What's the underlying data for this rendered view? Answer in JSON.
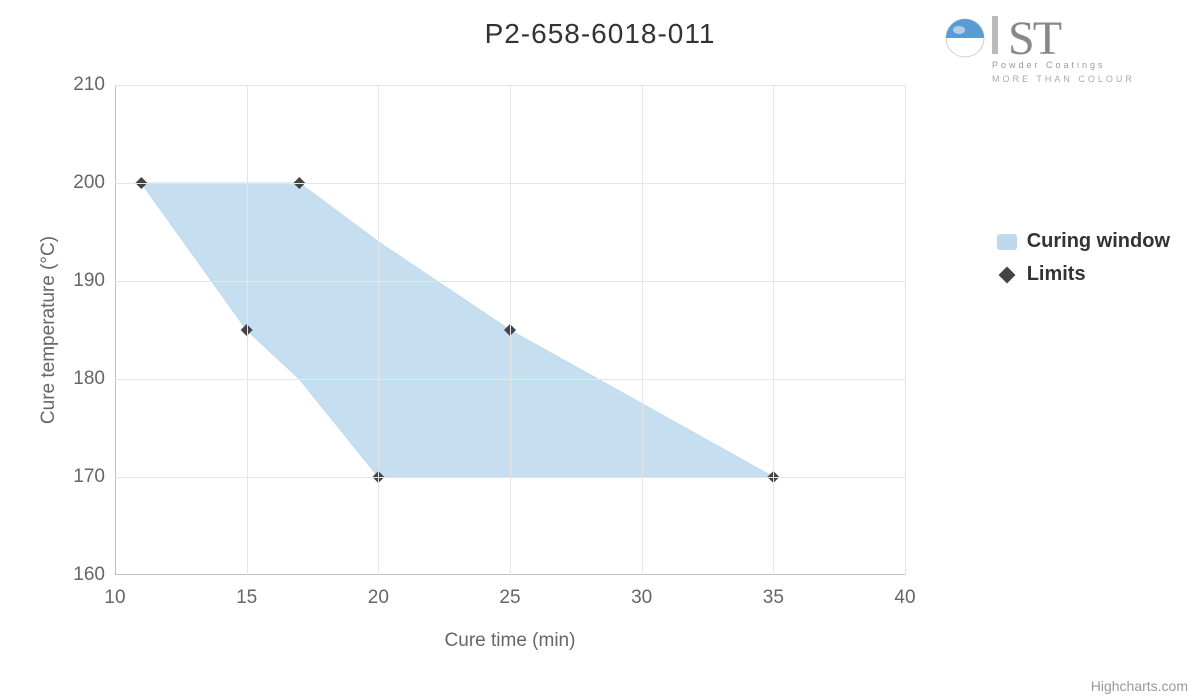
{
  "title": "P2-658-6018-011",
  "logo": {
    "text_main": "ST",
    "text_sub1": "Powder Coatings",
    "text_sub2": "MORE THAN COLOUR",
    "sphere_top_color": "#5a9bd4",
    "sphere_bottom_color": "#ffffff",
    "text_color": "#888888"
  },
  "chart": {
    "type": "area-range-scatter",
    "background_color": "#ffffff",
    "grid_color": "#e6e6e6",
    "axis_line_color": "#c0c0c0",
    "tick_label_color": "#666666",
    "axis_title_color": "#666666",
    "title_fontsize": 28,
    "tick_fontsize": 19,
    "axis_title_fontsize": 19,
    "x": {
      "title": "Cure time (min)",
      "min": 10,
      "max": 40,
      "ticks": [
        10,
        15,
        20,
        25,
        30,
        35,
        40
      ]
    },
    "y": {
      "title": "Cure temperature (°C)",
      "min": 160,
      "max": 210,
      "ticks": [
        160,
        170,
        180,
        190,
        200,
        210
      ]
    },
    "series": {
      "curing_window": {
        "name": "Curing window",
        "type": "arearange",
        "fill_color": "#bcd9ed",
        "fill_opacity": 0.85,
        "line_color": "#bcd9ed",
        "line_width": 1,
        "data": [
          {
            "x": 11,
            "low": 200,
            "high": 200
          },
          {
            "x": 15,
            "low": 185,
            "high": 200
          },
          {
            "x": 17,
            "low": 180,
            "high": 200
          },
          {
            "x": 20,
            "low": 170,
            "high": 194
          },
          {
            "x": 25,
            "low": 170,
            "high": 185
          },
          {
            "x": 35,
            "low": 170,
            "high": 170
          }
        ]
      },
      "limits": {
        "name": "Limits",
        "type": "scatter",
        "marker_shape": "diamond",
        "marker_size": 12,
        "marker_color": "#444444",
        "data": [
          {
            "x": 11,
            "y": 200
          },
          {
            "x": 17,
            "y": 200
          },
          {
            "x": 15,
            "y": 185
          },
          {
            "x": 25,
            "y": 185
          },
          {
            "x": 20,
            "y": 170
          },
          {
            "x": 35,
            "y": 170
          }
        ]
      }
    }
  },
  "legend": {
    "items": [
      {
        "label": "Curing window",
        "type": "area"
      },
      {
        "label": "Limits",
        "type": "diamond"
      }
    ],
    "font_weight": "bold",
    "fontsize": 20
  },
  "credits": "Highcharts.com"
}
